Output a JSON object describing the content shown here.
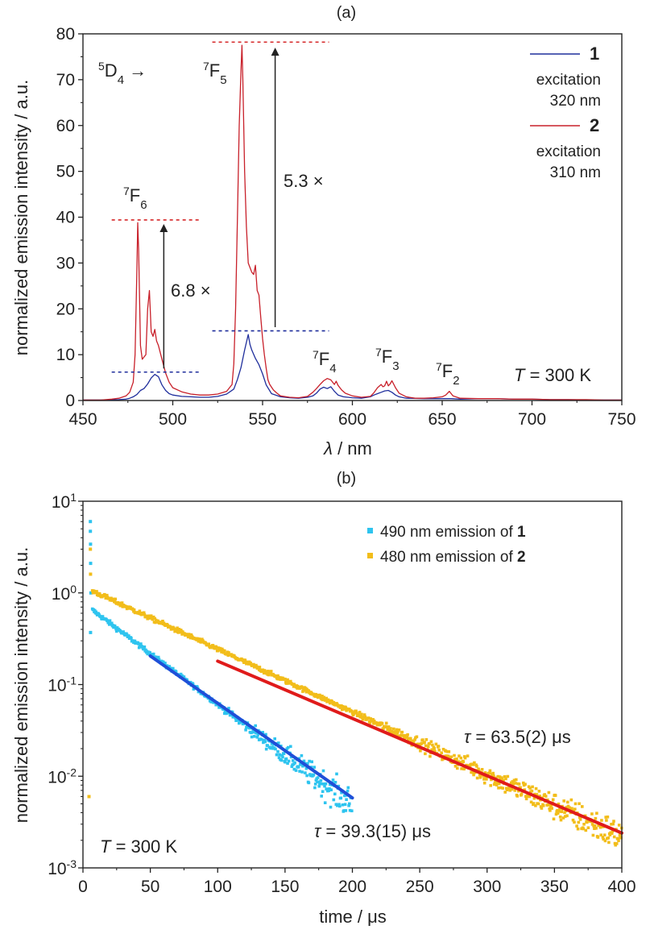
{
  "chart_data": [
    {
      "panel": "(a)",
      "type": "line",
      "xlabel_symbol": "λ",
      "xlabel_rest": " / nm",
      "ylabel": "normalized emission intensity / a.u.",
      "xlim": [
        450,
        750
      ],
      "ylim": [
        0,
        80
      ],
      "xticks": [
        "450",
        "500",
        "550",
        "600",
        "650",
        "700",
        "750"
      ],
      "yticks": [
        "0",
        "10",
        "20",
        "30",
        "40",
        "50",
        "60",
        "70",
        "80"
      ],
      "temperature_label": {
        "symbol": "T",
        "rest": " = 300 K"
      },
      "transition_origin": {
        "sup": "5",
        "base": "D",
        "sub": "4",
        "arrow": " →"
      },
      "transitions": [
        {
          "sup": "7",
          "base": "F",
          "sub": "6",
          "x": 483,
          "y": 42
        },
        {
          "sup": "7",
          "base": "F",
          "sub": "5",
          "x": 540,
          "y": 74
        },
        {
          "sup": "7",
          "base": "F",
          "sub": "4",
          "x": 585,
          "y": 8
        },
        {
          "sup": "7",
          "base": "F",
          "sub": "3",
          "x": 620,
          "y": 8
        },
        {
          "sup": "7",
          "base": "F",
          "sub": "2",
          "x": 655,
          "y": 6
        }
      ],
      "ratio_labels": [
        "6.8 ×",
        "5.3 ×"
      ],
      "reference_lines": [
        {
          "color": "#d62728",
          "y": 39.4,
          "x": [
            466,
            515
          ]
        },
        {
          "color": "#1f2e9c",
          "y": 6.2,
          "x": [
            466,
            515
          ]
        },
        {
          "color": "#d62728",
          "y": 78.2,
          "x": [
            522,
            587
          ]
        },
        {
          "color": "#1f2e9c",
          "y": 15.2,
          "x": [
            522,
            587
          ]
        }
      ],
      "arrows": [
        {
          "x": 495,
          "from": 7,
          "to": 38.5
        },
        {
          "x": 557,
          "from": 16,
          "to": 77
        }
      ],
      "series": [
        {
          "name": "1",
          "legend_note": [
            "excitation",
            "320 nm"
          ],
          "color": "#1f2e9c",
          "x": [
            450,
            460,
            470,
            474,
            476,
            478,
            480,
            482,
            484,
            486,
            488,
            490,
            492,
            494,
            496,
            498,
            500,
            505,
            510,
            515,
            520,
            525,
            530,
            534,
            536,
            538,
            540,
            542,
            543,
            544,
            546,
            548,
            550,
            552,
            555,
            560,
            565,
            570,
            575,
            578,
            580,
            582,
            584,
            586,
            588,
            590,
            592,
            595,
            600,
            605,
            610,
            612,
            614,
            616,
            618,
            620,
            622,
            624,
            626,
            630,
            640,
            645,
            650,
            655,
            660,
            670,
            680,
            690,
            700,
            710,
            720,
            730,
            740,
            750
          ],
          "values": [
            0.1,
            0.1,
            0.2,
            0.3,
            0.5,
            0.8,
            1.3,
            2.2,
            2.6,
            3.6,
            4.9,
            5.7,
            5.2,
            3.4,
            2.2,
            1.5,
            1.2,
            0.9,
            0.8,
            0.7,
            0.7,
            0.9,
            1.4,
            2.5,
            4.6,
            7.2,
            11.0,
            14.4,
            12.2,
            11.0,
            9.2,
            7.8,
            5.8,
            3.4,
            1.5,
            0.8,
            0.6,
            0.5,
            0.7,
            1.0,
            1.6,
            2.5,
            2.9,
            2.6,
            3.0,
            2.0,
            1.2,
            0.8,
            0.6,
            0.5,
            0.8,
            1.2,
            1.5,
            1.8,
            2.1,
            2.2,
            1.8,
            1.2,
            0.8,
            0.5,
            0.4,
            0.4,
            0.4,
            0.4,
            0.3,
            0.4,
            0.4,
            0.3,
            0.3,
            0.2,
            0.2,
            0.1,
            0.1,
            0.1
          ]
        },
        {
          "name": "2",
          "legend_note": [
            "excitation",
            "310 nm"
          ],
          "color": "#c8202a",
          "x": [
            450,
            460,
            466,
            470,
            474,
            476,
            478,
            479,
            480,
            480.5,
            481,
            482,
            483,
            484,
            485,
            486,
            487,
            488,
            489,
            490,
            491,
            492,
            494,
            496,
            498,
            500,
            505,
            510,
            515,
            520,
            525,
            530,
            533,
            534,
            535,
            536,
            537,
            538,
            538.5,
            539,
            540,
            541,
            542,
            543,
            544,
            545,
            546,
            547,
            548,
            549,
            550,
            551,
            552,
            553,
            554,
            556,
            558,
            560,
            565,
            570,
            575,
            576,
            578,
            580,
            582,
            584,
            586,
            588,
            590,
            591,
            592,
            594,
            596,
            600,
            605,
            610,
            612,
            614,
            616,
            617,
            618,
            619,
            620,
            621,
            622,
            624,
            626,
            630,
            635,
            640,
            645,
            650,
            652,
            654,
            656,
            660,
            670,
            680,
            690,
            700,
            710,
            720,
            730,
            740,
            750
          ],
          "values": [
            0.1,
            0.1,
            0.3,
            0.5,
            1.0,
            1.8,
            4.0,
            10,
            28,
            38.8,
            33,
            12,
            9,
            9.5,
            10,
            20,
            24,
            15,
            14,
            15.5,
            13,
            12,
            9,
            6,
            4,
            2.8,
            1.9,
            1.4,
            1.2,
            1.2,
            1.4,
            2.0,
            3.5,
            8,
            20,
            40,
            60,
            72,
            77.5,
            70,
            50,
            38,
            30,
            29,
            28,
            27.5,
            29.5,
            24,
            23,
            18,
            13.5,
            10,
            7,
            4.5,
            3.5,
            2.3,
            1.6,
            1.0,
            0.7,
            0.6,
            0.9,
            1.2,
            1.8,
            2.6,
            3.5,
            4.3,
            4.8,
            4.5,
            3.5,
            4.2,
            3.3,
            2.3,
            1.6,
            1.0,
            0.7,
            0.9,
            1.7,
            2.8,
            3.5,
            3.0,
            3.2,
            4.2,
            3.2,
            3.6,
            4.3,
            2.8,
            1.6,
            0.8,
            0.5,
            0.5,
            0.6,
            0.8,
            1.2,
            2.0,
            1.0,
            0.5,
            0.4,
            0.4,
            0.3,
            0.3,
            0.2,
            0.2,
            0.2,
            0.1,
            0.1
          ]
        }
      ]
    },
    {
      "panel": "(b)",
      "type": "scatter",
      "xlabel": "time / μs",
      "ylabel": "normalized emission intensity / a.u.",
      "xlim": [
        0,
        400
      ],
      "ylim": [
        0.001,
        10
      ],
      "yscale": "log",
      "xticks": [
        "0",
        "50",
        "100",
        "150",
        "200",
        "250",
        "300",
        "350",
        "400"
      ],
      "yticks": [
        {
          "base": "10",
          "exp": "1"
        },
        {
          "base": "10",
          "exp": "0"
        },
        {
          "base": "10",
          "exp": "-1"
        },
        {
          "base": "10",
          "exp": "-2"
        },
        {
          "base": "10",
          "exp": "-3"
        }
      ],
      "temperature_label": {
        "symbol": "T",
        "rest": " = 300 K"
      },
      "series": [
        {
          "legend_text": "490 nm emission of ",
          "legend_bold": "1",
          "color": "#2ec4ef",
          "decay": {
            "t_start": 7,
            "t_end": 200,
            "y_start": 0.65,
            "tau_us": 39.3,
            "noise_from_t": 100
          },
          "initial_points": [
            {
              "t": 5.5,
              "y": 6.0
            },
            {
              "t": 5.5,
              "y": 4.7
            },
            {
              "t": 5.6,
              "y": 3.4
            },
            {
              "t": 5.7,
              "y": 2.1
            },
            {
              "t": 5.9,
              "y": 1.0
            },
            {
              "t": 5.6,
              "y": 0.37
            }
          ],
          "fit": {
            "color": "#1f4fd8",
            "t_start": 50,
            "t_end": 200,
            "y_start": 0.205,
            "y_end": 0.0058
          }
        },
        {
          "legend_text": "480 nm emission of ",
          "legend_bold": "2",
          "color": "#f2bd1a",
          "decay": {
            "t_start": 7,
            "t_end": 400,
            "y_start": 1.05,
            "tau_us": 63.5,
            "noise_from_t": 200
          },
          "initial_points": [
            {
              "t": 5.5,
              "y": 3.0
            },
            {
              "t": 5.6,
              "y": 1.6
            },
            {
              "t": 4.5,
              "y": 0.006
            }
          ],
          "fit": {
            "color": "#e01b1b",
            "t_start": 100,
            "t_end": 400,
            "y_start": 0.18,
            "y_end": 0.0024
          }
        }
      ],
      "tau_labels": [
        {
          "symbol": "τ",
          "rest": " = 39.3(15) μs"
        },
        {
          "symbol": "τ",
          "rest": " = 63.5(2) μs"
        }
      ]
    }
  ]
}
